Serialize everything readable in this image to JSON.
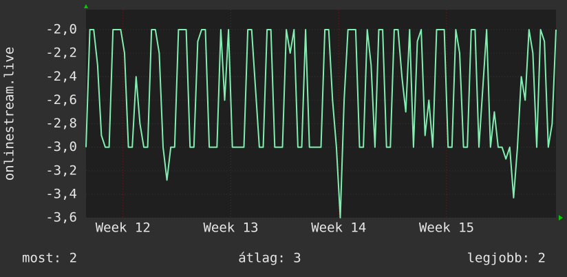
{
  "chart_data": {
    "type": "line",
    "ylabel": "onlinestream.live",
    "x": [
      0,
      0.25,
      0.5,
      0.75,
      1,
      1.25,
      1.5,
      1.75,
      2,
      2.25,
      2.5,
      2.75,
      3,
      3.25,
      3.5,
      3.75,
      4,
      4.25,
      4.5,
      4.75,
      5,
      5.25,
      5.5,
      5.75,
      6,
      6.25,
      6.5,
      6.75,
      7,
      7.25,
      7.5,
      7.75,
      8,
      8.25,
      8.5,
      8.75,
      9,
      9.25,
      9.5,
      9.75,
      10,
      10.25,
      10.5,
      10.75,
      11,
      11.25,
      11.5,
      11.75,
      12,
      12.25,
      12.5,
      12.75,
      13,
      13.25,
      13.5,
      13.75,
      14,
      14.25,
      14.5,
      14.75,
      15,
      15.25,
      15.5,
      15.75,
      16,
      16.25,
      16.5,
      16.75,
      17,
      17.25,
      17.5,
      17.75,
      18,
      18.25,
      18.5,
      18.75,
      19,
      19.25,
      19.5,
      19.75,
      20,
      20.25,
      20.5,
      20.75,
      21,
      21.25,
      21.5,
      21.75,
      22,
      22.25,
      22.5,
      22.75,
      23,
      23.25,
      23.5,
      23.75,
      24,
      24.25,
      24.5,
      24.75,
      25,
      25.25,
      25.5,
      25.75,
      26,
      26.25,
      26.5,
      26.75,
      27,
      27.25,
      27.5,
      27.75,
      28,
      28.25,
      28.5,
      28.75,
      29,
      29.25,
      29.5,
      29.75,
      30,
      30.25,
      30.5
    ],
    "series": [
      {
        "color": "#80f0b0",
        "values": [
          -3,
          -2,
          -2,
          -2.3,
          -2.9,
          -3,
          -3,
          -2,
          -2,
          -2,
          -2.2,
          -3,
          -3,
          -2.4,
          -2.8,
          -3,
          -3,
          -2,
          -2,
          -2.2,
          -3,
          -3.28,
          -3,
          -3,
          -2,
          -2,
          -2,
          -3,
          -3,
          -2.1,
          -2,
          -2,
          -3,
          -3,
          -3,
          -2,
          -2.6,
          -2,
          -3,
          -3,
          -3,
          -3,
          -2,
          -2,
          -2.5,
          -3,
          -3,
          -2,
          -2,
          -3,
          -3,
          -3,
          -2,
          -2.2,
          -2,
          -3,
          -3,
          -2,
          -3,
          -3,
          -3,
          -3,
          -2,
          -2,
          -2.6,
          -3,
          -3.6,
          -2.6,
          -2,
          -2,
          -2,
          -3,
          -3,
          -2,
          -2.3,
          -3,
          -2,
          -2,
          -3,
          -3,
          -2,
          -2,
          -2.4,
          -2.7,
          -2,
          -3,
          -2.1,
          -2,
          -2.9,
          -2.6,
          -3,
          -2,
          -2,
          -2,
          -3,
          -3,
          -2,
          -2.2,
          -3,
          -3,
          -2,
          -2,
          -3,
          -2.5,
          -2,
          -3,
          -2.7,
          -3,
          -3,
          -3.1,
          -3,
          -3.43,
          -3,
          -2.4,
          -2.6,
          -2,
          -2.2,
          -3,
          -2,
          -2.1,
          -3,
          -2.8,
          -2
        ]
      }
    ],
    "xlim": [
      0,
      30.5
    ],
    "xticks": [
      {
        "value": 2.4,
        "label": "Week 12"
      },
      {
        "value": 9.4,
        "label": "Week 13"
      },
      {
        "value": 16.4,
        "label": "Week 14"
      },
      {
        "value": 23.4,
        "label": "Week 15"
      }
    ],
    "ylim": [
      -3.6,
      -1.83
    ],
    "yticks": [
      {
        "value": -2,
        "label": "-2,0"
      },
      {
        "value": -2.2,
        "label": "-2,2"
      },
      {
        "value": -2.4,
        "label": "-2,4"
      },
      {
        "value": -2.6,
        "label": "-2,6"
      },
      {
        "value": -2.8,
        "label": "-2,8"
      },
      {
        "value": -3,
        "label": "-3,0"
      },
      {
        "value": -3.2,
        "label": "-3,2"
      },
      {
        "value": -3.4,
        "label": "-3,4"
      },
      {
        "value": -3.6,
        "label": "-3,6"
      }
    ],
    "grid": true,
    "footer": [
      "most: 2",
      "átlag: 3",
      "legjobb: 2"
    ]
  }
}
